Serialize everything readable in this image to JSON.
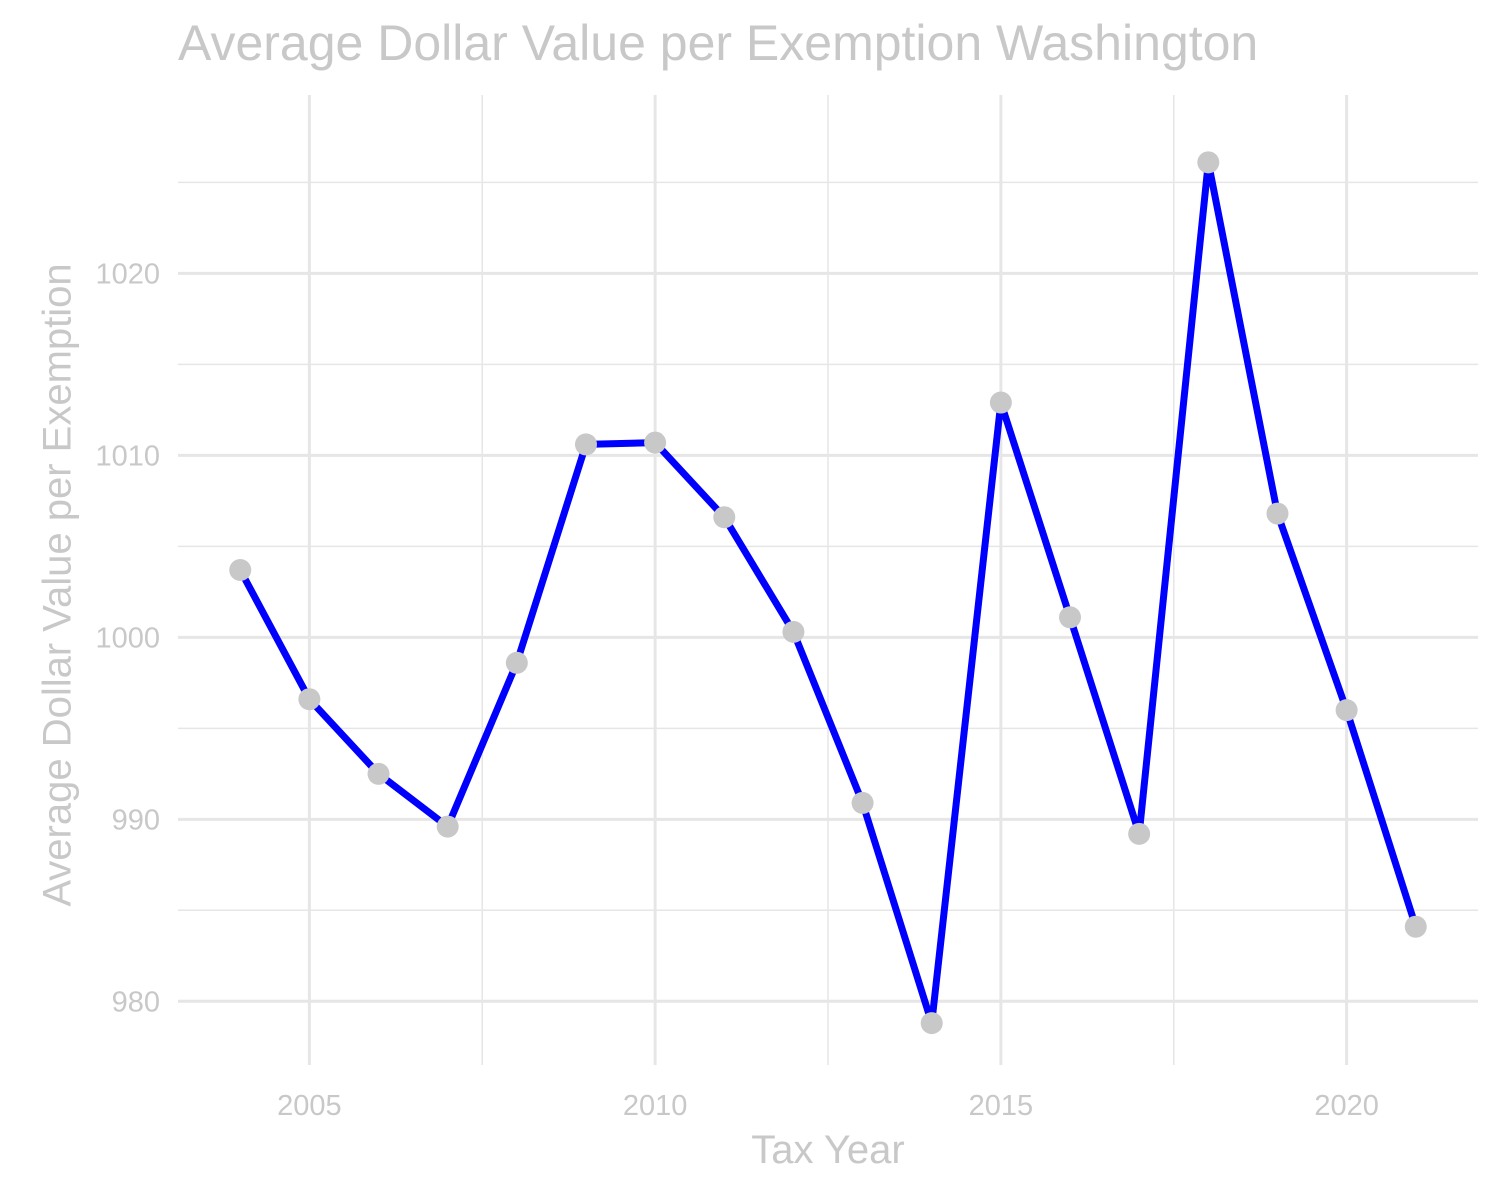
{
  "chart_data": {
    "type": "line",
    "title": "Average Dollar Value per Exemption Washington",
    "xlabel": "Tax Year",
    "ylabel": "Average Dollar Value per Exemption",
    "x": [
      2004,
      2005,
      2006,
      2007,
      2008,
      2009,
      2010,
      2011,
      2012,
      2013,
      2014,
      2015,
      2016,
      2017,
      2018,
      2019,
      2020,
      2021
    ],
    "series": [
      {
        "values": [
          1003.7,
          996.6,
          992.5,
          989.6,
          998.6,
          1010.6,
          1010.7,
          1006.6,
          1000.3,
          990.9,
          978.8,
          1012.9,
          1001.1,
          989.2,
          1026.1,
          1006.8,
          996.0,
          984.1
        ]
      }
    ],
    "xticks": [
      2005,
      2010,
      2015,
      2020
    ],
    "yticks": [
      980,
      990,
      1000,
      1010,
      1020
    ],
    "xlim": [
      2003.1,
      2021.9
    ],
    "ylim": [
      976.5,
      1029.8
    ],
    "grid": true,
    "colors": {
      "line": "#0000ff",
      "point": "#c8c8c8",
      "grid": "#e6e6e6",
      "text": "#c8c8c8"
    }
  }
}
